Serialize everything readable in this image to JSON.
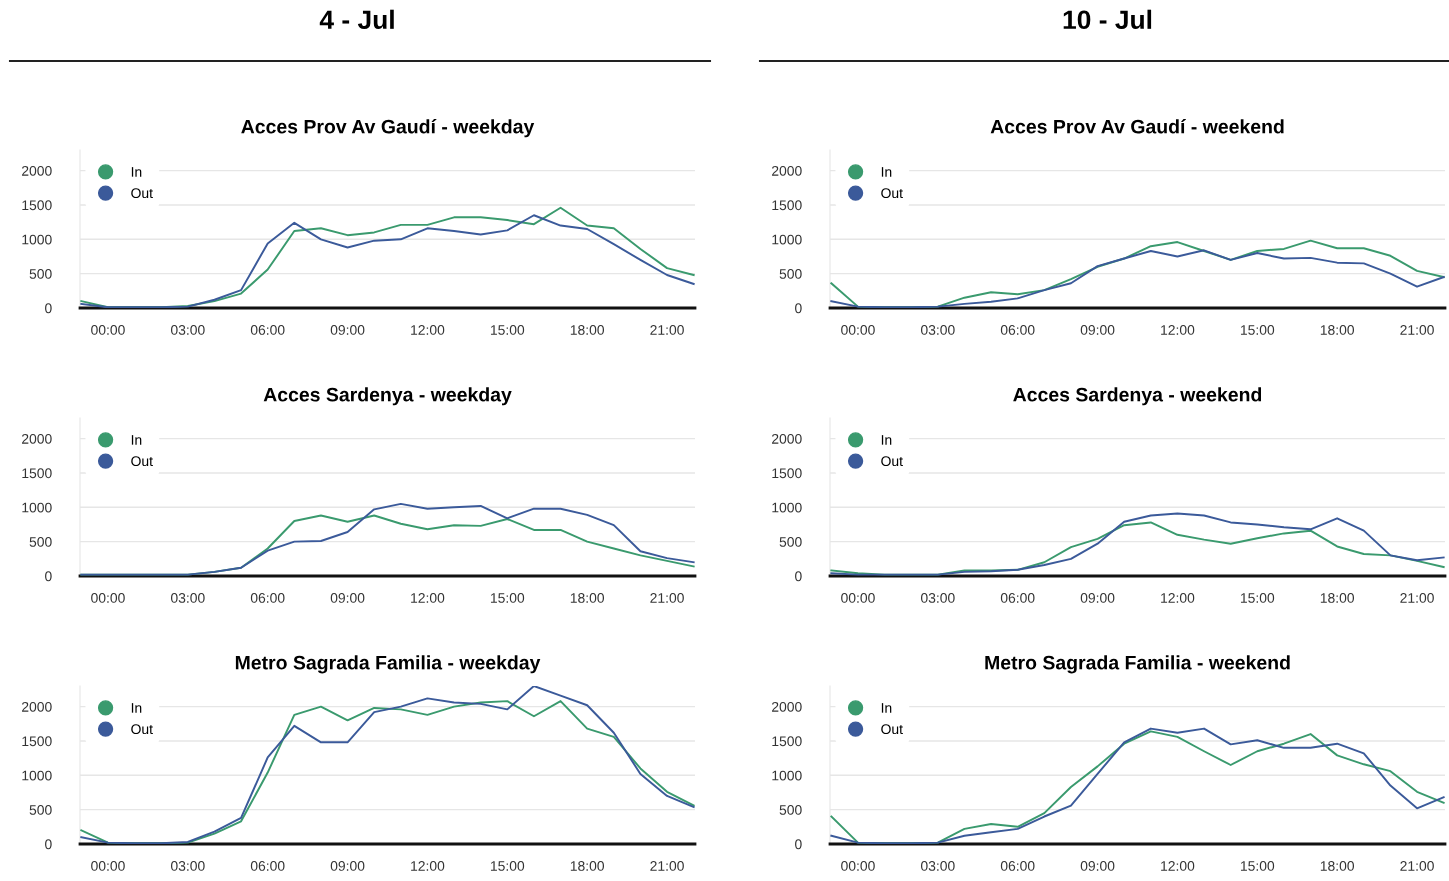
{
  "chart_data": [
    {
      "type": "line",
      "title": "Acces Prov Av Gaudí - weekday",
      "annotations": [
        "4 - Jul"
      ],
      "categories": [
        null,
        "00:00",
        null,
        null,
        "03:00",
        null,
        null,
        "06:00",
        null,
        null,
        "09:00",
        null,
        null,
        "12:00",
        null,
        null,
        "15:00",
        null,
        null,
        "18:00",
        null,
        null,
        "21:00",
        null
      ],
      "series": [
        {
          "name": "In",
          "color": "#3a9a6e",
          "values": [
            100,
            10,
            10,
            10,
            30,
            100,
            210,
            560,
            1120,
            1160,
            1060,
            1100,
            1210,
            1210,
            1320,
            1320,
            1280,
            1220,
            1460,
            1200,
            1160,
            860,
            580,
            480
          ]
        },
        {
          "name": "Out",
          "color": "#3b5a9a",
          "values": [
            60,
            10,
            10,
            10,
            20,
            120,
            260,
            940,
            1240,
            1000,
            880,
            980,
            1000,
            1160,
            1120,
            1070,
            1130,
            1350,
            1200,
            1150,
            930,
            700,
            480,
            350
          ]
        }
      ],
      "ylim": [
        0,
        2300
      ],
      "yticks": [
        0,
        500,
        1000,
        1500,
        2000
      ],
      "grid": "y",
      "legend": "top left"
    },
    {
      "type": "line",
      "title": "Acces Prov Av Gaudí - weekend",
      "annotations": [
        "10 - Jul"
      ],
      "categories": [
        null,
        "00:00",
        null,
        null,
        "03:00",
        null,
        null,
        "06:00",
        null,
        null,
        "09:00",
        null,
        null,
        "12:00",
        null,
        null,
        "15:00",
        null,
        null,
        "18:00",
        null,
        null,
        "21:00",
        null
      ],
      "series": [
        {
          "name": "In",
          "color": "#3a9a6e",
          "values": [
            360,
            20,
            10,
            10,
            20,
            150,
            230,
            200,
            260,
            420,
            600,
            720,
            900,
            960,
            830,
            700,
            830,
            860,
            980,
            870,
            870,
            760,
            540,
            450
          ]
        },
        {
          "name": "Out",
          "color": "#3b5a9a",
          "values": [
            100,
            20,
            10,
            10,
            20,
            60,
            90,
            140,
            260,
            360,
            610,
            720,
            830,
            750,
            840,
            700,
            800,
            720,
            730,
            660,
            650,
            500,
            310,
            450
          ]
        }
      ],
      "ylim": [
        0,
        2300
      ],
      "yticks": [
        0,
        500,
        1000,
        1500,
        2000
      ],
      "grid": "y",
      "legend": "top left"
    },
    {
      "type": "line",
      "title": "Acces Sardenya - weekday",
      "categories": [
        null,
        "00:00",
        null,
        null,
        "03:00",
        null,
        null,
        "06:00",
        null,
        null,
        "09:00",
        null,
        null,
        "12:00",
        null,
        null,
        "15:00",
        null,
        null,
        "18:00",
        null,
        null,
        "21:00",
        null
      ],
      "series": [
        {
          "name": "In",
          "color": "#3a9a6e",
          "values": [
            20,
            20,
            20,
            20,
            20,
            60,
            120,
            400,
            800,
            880,
            790,
            880,
            760,
            680,
            740,
            730,
            830,
            670,
            670,
            500,
            400,
            300,
            220,
            140
          ]
        },
        {
          "name": "Out",
          "color": "#3b5a9a",
          "values": [
            20,
            20,
            20,
            20,
            20,
            60,
            120,
            370,
            500,
            510,
            640,
            970,
            1050,
            980,
            1000,
            1020,
            840,
            980,
            980,
            890,
            740,
            360,
            260,
            200
          ]
        }
      ],
      "ylim": [
        0,
        2300
      ],
      "yticks": [
        0,
        500,
        1000,
        1500,
        2000
      ],
      "grid": "y",
      "legend": "top left"
    },
    {
      "type": "line",
      "title": "Acces Sardenya - weekend",
      "categories": [
        null,
        "00:00",
        null,
        null,
        "03:00",
        null,
        null,
        "06:00",
        null,
        null,
        "09:00",
        null,
        null,
        "12:00",
        null,
        null,
        "15:00",
        null,
        null,
        "18:00",
        null,
        null,
        "21:00",
        null
      ],
      "series": [
        {
          "name": "In",
          "color": "#3a9a6e",
          "values": [
            80,
            40,
            20,
            20,
            20,
            80,
            80,
            90,
            200,
            420,
            540,
            740,
            780,
            600,
            530,
            470,
            550,
            620,
            660,
            430,
            320,
            300,
            220,
            130
          ]
        },
        {
          "name": "Out",
          "color": "#3b5a9a",
          "values": [
            40,
            20,
            20,
            20,
            20,
            60,
            70,
            90,
            160,
            250,
            470,
            790,
            880,
            910,
            880,
            780,
            750,
            710,
            680,
            840,
            660,
            300,
            230,
            270
          ]
        }
      ],
      "ylim": [
        0,
        2300
      ],
      "yticks": [
        0,
        500,
        1000,
        1500,
        2000
      ],
      "grid": "y",
      "legend": "top left"
    },
    {
      "type": "line",
      "title": "Metro Sagrada Familia - weekday",
      "categories": [
        null,
        "00:00",
        null,
        null,
        "03:00",
        null,
        null,
        "06:00",
        null,
        null,
        "09:00",
        null,
        null,
        "12:00",
        null,
        null,
        "15:00",
        null,
        null,
        "18:00",
        null,
        null,
        "21:00",
        null
      ],
      "series": [
        {
          "name": "In",
          "color": "#3a9a6e",
          "values": [
            200,
            20,
            10,
            10,
            20,
            150,
            330,
            1040,
            1880,
            2000,
            1800,
            1980,
            1960,
            1880,
            2000,
            2060,
            2080,
            1860,
            2080,
            1680,
            1560,
            1100,
            760,
            560
          ]
        },
        {
          "name": "Out",
          "color": "#3b5a9a",
          "values": [
            100,
            20,
            10,
            10,
            30,
            180,
            380,
            1260,
            1720,
            1480,
            1480,
            1920,
            2000,
            2120,
            2060,
            2040,
            1960,
            2300,
            2160,
            2020,
            1620,
            1020,
            700,
            540
          ]
        }
      ],
      "ylim": [
        0,
        2300
      ],
      "yticks": [
        0,
        500,
        1000,
        1500,
        2000
      ],
      "grid": "y",
      "legend": "top left"
    },
    {
      "type": "line",
      "title": "Metro Sagrada Familia - weekend",
      "categories": [
        null,
        "00:00",
        null,
        null,
        "03:00",
        null,
        null,
        "06:00",
        null,
        null,
        "09:00",
        null,
        null,
        "12:00",
        null,
        null,
        "15:00",
        null,
        null,
        "18:00",
        null,
        null,
        "21:00",
        null
      ],
      "series": [
        {
          "name": "In",
          "color": "#3a9a6e",
          "values": [
            400,
            20,
            10,
            10,
            20,
            220,
            290,
            250,
            450,
            830,
            1130,
            1460,
            1640,
            1560,
            1350,
            1150,
            1350,
            1460,
            1600,
            1290,
            1160,
            1060,
            760,
            600
          ]
        },
        {
          "name": "Out",
          "color": "#3b5a9a",
          "values": [
            120,
            20,
            10,
            10,
            20,
            120,
            170,
            220,
            400,
            560,
            1020,
            1480,
            1680,
            1620,
            1680,
            1450,
            1510,
            1400,
            1400,
            1460,
            1320,
            850,
            520,
            680
          ]
        }
      ],
      "ylim": [
        0,
        2300
      ],
      "yticks": [
        0,
        500,
        1000,
        1500,
        2000
      ],
      "grid": "y",
      "legend": "top left"
    }
  ]
}
